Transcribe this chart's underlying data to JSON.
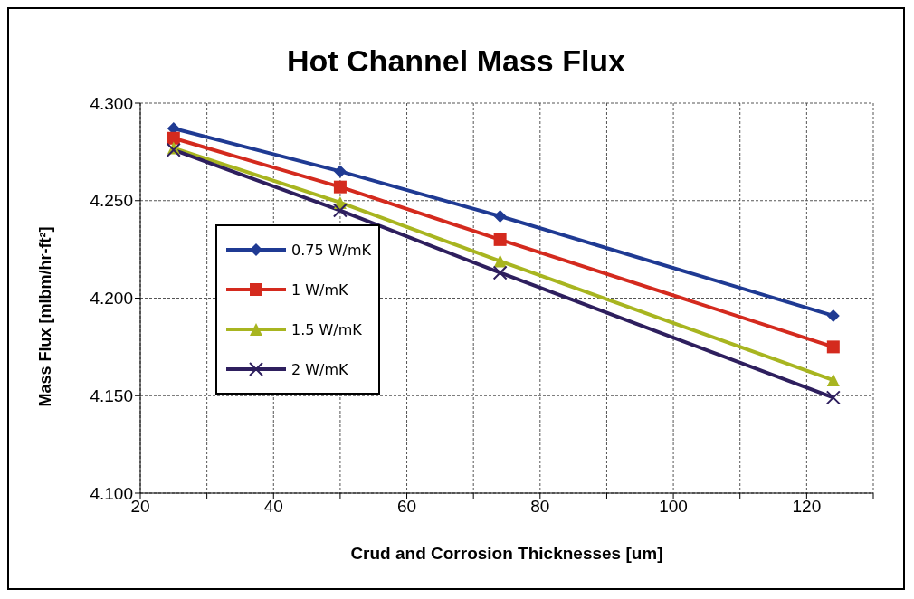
{
  "chart_data": {
    "type": "line",
    "title": "Hot Channel Mass Flux",
    "xlabel": "Crud and Corrosion Thicknesses [um]",
    "ylabel": "Mass Flux [mlbm/hr-ft²]",
    "x": [
      25,
      50,
      74,
      124
    ],
    "series": [
      {
        "name": "0.75 W/mK",
        "color": "#1f3a93",
        "marker": "diamond",
        "values": [
          4.287,
          4.265,
          4.242,
          4.191
        ]
      },
      {
        "name": "1 W/mK",
        "color": "#d42a1e",
        "marker": "square",
        "values": [
          4.282,
          4.257,
          4.23,
          4.175
        ]
      },
      {
        "name": "1.5 W/mK",
        "color": "#a8b520",
        "marker": "triangle",
        "values": [
          4.277,
          4.249,
          4.219,
          4.158
        ]
      },
      {
        "name": "2 W/mK",
        "color": "#2e1f5e",
        "marker": "cross",
        "values": [
          4.276,
          4.245,
          4.213,
          4.149
        ]
      }
    ],
    "xlim": [
      20,
      130
    ],
    "xticks": [
      20,
      {
        "value": 30,
        "label": null
      },
      40,
      {
        "value": 50,
        "label": null
      },
      60,
      {
        "value": 70,
        "label": null
      },
      80,
      {
        "value": 90,
        "label": null
      },
      100,
      {
        "value": 110,
        "label": null
      },
      120,
      {
        "value": 130,
        "label": null
      }
    ],
    "ylim": [
      4.1,
      4.3
    ],
    "yticks": [
      {
        "value": 4.1,
        "label": "4.100"
      },
      {
        "value": 4.15,
        "label": "4.150"
      },
      {
        "value": 4.2,
        "label": "4.200"
      },
      {
        "value": 4.25,
        "label": "4.250"
      },
      {
        "value": 4.3,
        "label": "4.300"
      }
    ],
    "grid": true,
    "legend": "left",
    "line_style": "solid"
  }
}
